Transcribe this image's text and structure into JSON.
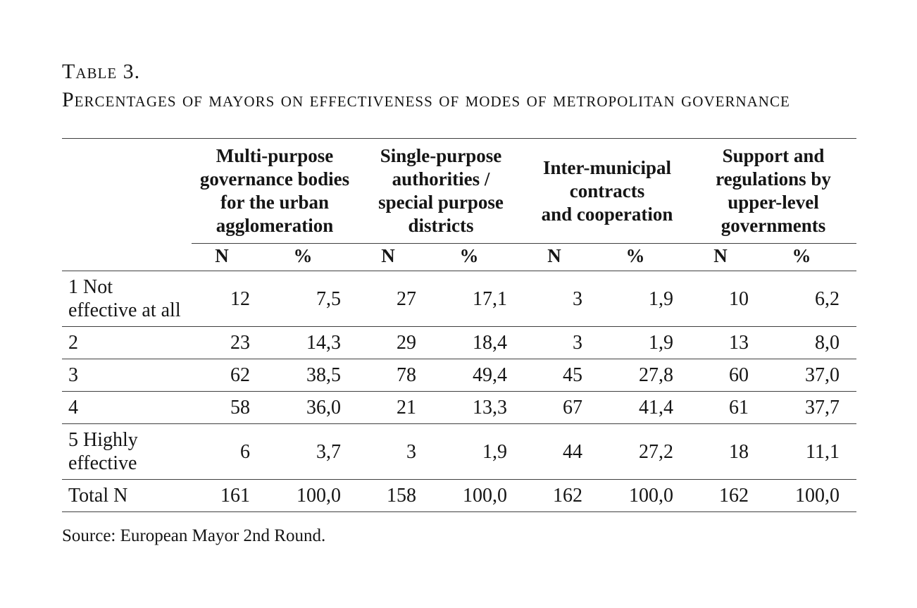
{
  "colors": {
    "text": "#151515",
    "rule": "#3f3f3f",
    "background": "#ffffff"
  },
  "title": "Table 3.",
  "subtitle": "Percentages of mayors on effectiveness of modes of metropolitan governance",
  "source": "Source: European Mayor 2nd Round.",
  "chart_data": {
    "type": "table",
    "column_groups": [
      "Multi-purpose governance bodies for the urban agglomeration",
      "Single-purpose authorities / special purpose districts",
      "Inter-municipal contracts and cooperation",
      "Support and regulations by upper-level governments"
    ],
    "sub_columns_per_group": [
      "N",
      "%"
    ],
    "row_labels": [
      "1 Not effective at all",
      "2",
      "3",
      "4",
      "5 Highly effective",
      "Total N"
    ],
    "values": [
      [
        12,
        7.5,
        27,
        17.1,
        3,
        1.9,
        10,
        6.2
      ],
      [
        23,
        14.3,
        29,
        18.4,
        3,
        1.9,
        13,
        8.0
      ],
      [
        62,
        38.5,
        78,
        49.4,
        45,
        27.8,
        60,
        37.0
      ],
      [
        58,
        36.0,
        21,
        13.3,
        67,
        41.4,
        61,
        37.7
      ],
      [
        6,
        3.7,
        3,
        1.9,
        44,
        27.2,
        18,
        11.1
      ],
      [
        161,
        100.0,
        158,
        100.0,
        162,
        100.0,
        162,
        100.0
      ]
    ],
    "decimal_separator": ","
  },
  "table": {
    "group_headers": [
      "Multi-purpose\ngovernance bodies\nfor the urban\nagglomeration",
      "Single-purpose\nauthorities /\nspecial purpose\ndistricts",
      "Inter-municipal\ncontracts\nand cooperation",
      "Support and\nregulations by\nupper-level\ngovernments"
    ],
    "sub_headers": [
      "N",
      "%",
      "N",
      "%",
      "N",
      "%",
      "N",
      "%"
    ],
    "rows": [
      {
        "label": "1 Not\neffective at all",
        "values": [
          "12",
          "7,5",
          "27",
          "17,1",
          "3",
          "1,9",
          "10",
          "6,2"
        ]
      },
      {
        "label": "2",
        "values": [
          "23",
          "14,3",
          "29",
          "18,4",
          "3",
          "1,9",
          "13",
          "8,0"
        ]
      },
      {
        "label": "3",
        "values": [
          "62",
          "38,5",
          "78",
          "49,4",
          "45",
          "27,8",
          "60",
          "37,0"
        ]
      },
      {
        "label": "4",
        "values": [
          "58",
          "36,0",
          "21",
          "13,3",
          "67",
          "41,4",
          "61",
          "37,7"
        ]
      },
      {
        "label": "5 Highly\neffective",
        "values": [
          "6",
          "3,7",
          "3",
          "1,9",
          "44",
          "27,2",
          "18",
          "11,1"
        ]
      },
      {
        "label": "Total N",
        "values": [
          "161",
          "100,0",
          "158",
          "100,0",
          "162",
          "100,0",
          "162",
          "100,0"
        ]
      }
    ]
  }
}
